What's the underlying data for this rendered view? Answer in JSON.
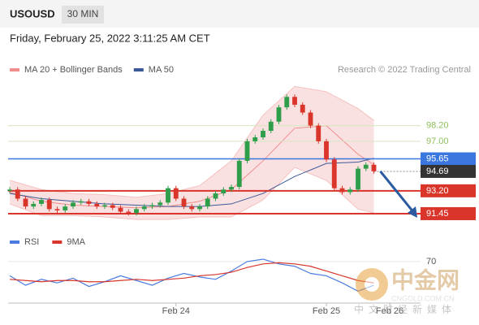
{
  "header": {
    "symbol": "USOUSD",
    "timeframe": "30 MIN",
    "datetime": "Friday, February 25, 2022 3:11:25 AM CET",
    "source": "Research © 2022 Trading Central"
  },
  "watermark": {
    "brand": "中金网",
    "url": "CNGOLD.COM.CN",
    "tagline": "中文财经新媒体"
  },
  "chart_data": {
    "type": "candlestick",
    "up_color": "#2e9e4a",
    "down_color": "#d9352b",
    "close": [
      93.3,
      92.6,
      92.0,
      92.2,
      92.5,
      91.8,
      91.7,
      92.0,
      92.3,
      92.4,
      92.2,
      92.0,
      92.1,
      91.9,
      91.6,
      91.5,
      91.8,
      92.0,
      92.1,
      92.3,
      93.4,
      92.6,
      92.0,
      91.8,
      92.0,
      92.6,
      93.0,
      93.3,
      93.5,
      95.5,
      97.0,
      97.3,
      97.8,
      98.5,
      99.6,
      100.4,
      99.8,
      99.2,
      98.2,
      97.0,
      95.6,
      93.4,
      93.1,
      93.3,
      94.9,
      95.2,
      94.7
    ],
    "xlim": [
      0,
      52
    ],
    "ylim": [
      90.7,
      101.6
    ],
    "xticks": [
      {
        "value": 21,
        "label": "Feb 24"
      },
      {
        "value": 40,
        "label": "Feb 25"
      },
      {
        "value": 48,
        "label": "Feb 26"
      }
    ],
    "legend": [
      {
        "name": "MA 20 + Bollinger Bands",
        "color": "#f08c8c"
      },
      {
        "name": "MA 50",
        "color": "#3b5998"
      }
    ],
    "bollinger": {
      "x": [
        0,
        4,
        8,
        12,
        16,
        20,
        24,
        28,
        32,
        36,
        40,
        44,
        46
      ],
      "upper": [
        94.0,
        93.3,
        93.0,
        92.9,
        92.7,
        93.0,
        93.6,
        95.5,
        99.0,
        101.2,
        100.8,
        99.5,
        98.6
      ],
      "lower": [
        92.2,
        91.3,
        91.3,
        91.2,
        91.0,
        91.0,
        91.2,
        91.2,
        92.5,
        95.0,
        94.0,
        91.8,
        91.5
      ],
      "ma20": [
        93.1,
        92.4,
        92.1,
        92.0,
        91.9,
        92.0,
        92.4,
        93.3,
        95.5,
        98.0,
        98.2,
        96.0,
        95.2
      ],
      "ma50": [
        93.0,
        92.6,
        92.4,
        92.2,
        92.1,
        92.0,
        92.0,
        92.2,
        93.0,
        94.3,
        95.3,
        95.4,
        95.7
      ]
    },
    "levels": [
      {
        "value": 98.2,
        "label": "98.20",
        "color": "#8fbf5a",
        "style": "text"
      },
      {
        "value": 97.0,
        "label": "97.00",
        "color": "#8fbf5a",
        "style": "text"
      },
      {
        "value": 95.65,
        "label": "95.65",
        "color": "#3a78e0",
        "style": "box"
      },
      {
        "value": 94.69,
        "label": "94.69",
        "color": "#333333",
        "style": "box"
      },
      {
        "value": 93.2,
        "label": "93.20",
        "color": "#d9352b",
        "style": "box"
      },
      {
        "value": 91.45,
        "label": "91.45",
        "color": "#d9352b",
        "style": "box"
      }
    ],
    "rsi": {
      "ylim": [
        35,
        85
      ],
      "yticks": [
        70
      ],
      "x": [
        0,
        2,
        4,
        6,
        8,
        10,
        12,
        14,
        16,
        18,
        20,
        22,
        24,
        26,
        28,
        30,
        32,
        34,
        36,
        38,
        40,
        42,
        44,
        46
      ],
      "series": [
        {
          "name": "RSI",
          "color": "#4a7be0",
          "values": [
            58,
            50,
            55,
            52,
            56,
            49,
            53,
            58,
            54,
            50,
            56,
            60,
            57,
            55,
            62,
            70,
            72,
            68,
            66,
            60,
            58,
            52,
            45,
            50
          ]
        },
        {
          "name": "9MA",
          "color": "#d9352b",
          "values": [
            55,
            54,
            53,
            54,
            54,
            53,
            53,
            54,
            55,
            54,
            55,
            56,
            58,
            59,
            61,
            65,
            68,
            69,
            68,
            66,
            62,
            58,
            54,
            52
          ]
        }
      ]
    }
  }
}
